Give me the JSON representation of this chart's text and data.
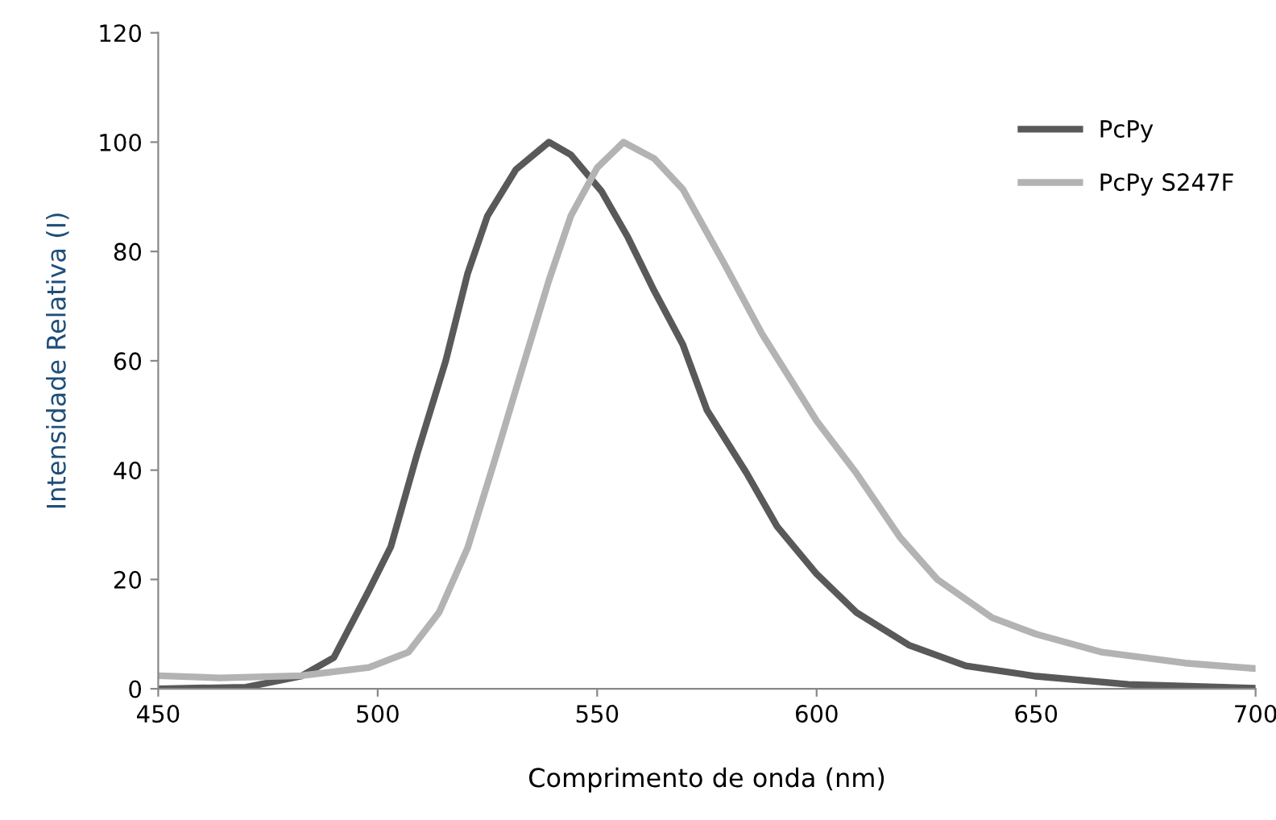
{
  "chart_data": {
    "type": "line",
    "xlabel": "Comprimento de onda (nm)",
    "ylabel": "Intensidade Relativa (I)",
    "xlim": [
      450,
      700
    ],
    "xticks": [
      450,
      500,
      550,
      600,
      650,
      700
    ],
    "ylim": [
      0,
      120
    ],
    "yticks": [
      0,
      20,
      40,
      60,
      80,
      100,
      120
    ],
    "grid": false,
    "legend": "right",
    "marker": "none",
    "line_style": "solid",
    "series": [
      {
        "name": "PcPy",
        "color": "#595959",
        "x": [
          450,
          470,
          482.5,
          490,
          498,
          503,
          509,
          515.5,
          520.5,
          525,
          531.5,
          539,
          544,
          551,
          557,
          563,
          569.5,
          575,
          584,
          591,
          600,
          609,
          621,
          634,
          650,
          671,
          700
        ],
        "values": [
          0,
          0.3,
          2.3,
          5.7,
          18,
          26,
          43,
          60,
          76,
          86.5,
          95,
          100,
          97.7,
          91,
          82.6,
          72.8,
          63,
          51,
          39.5,
          29.7,
          21,
          14,
          8,
          4.2,
          2.3,
          0.8,
          0.1
        ]
      },
      {
        "name": "PcPy S247F",
        "color": "#b3b3b3",
        "x": [
          450,
          464,
          482.5,
          498,
          507,
          514,
          520.5,
          526.5,
          532.7,
          539,
          544,
          550,
          556,
          563,
          569.5,
          579,
          587.5,
          600,
          609,
          619,
          627.5,
          640,
          650,
          665,
          684,
          700
        ],
        "values": [
          2.4,
          2,
          2.4,
          3.9,
          6.7,
          14,
          25.8,
          41.4,
          58,
          74.7,
          86.5,
          95.3,
          100,
          97,
          91.4,
          77.7,
          65,
          49,
          39.5,
          27.7,
          20,
          13,
          10,
          6.7,
          4.7,
          3.7
        ]
      }
    ]
  }
}
